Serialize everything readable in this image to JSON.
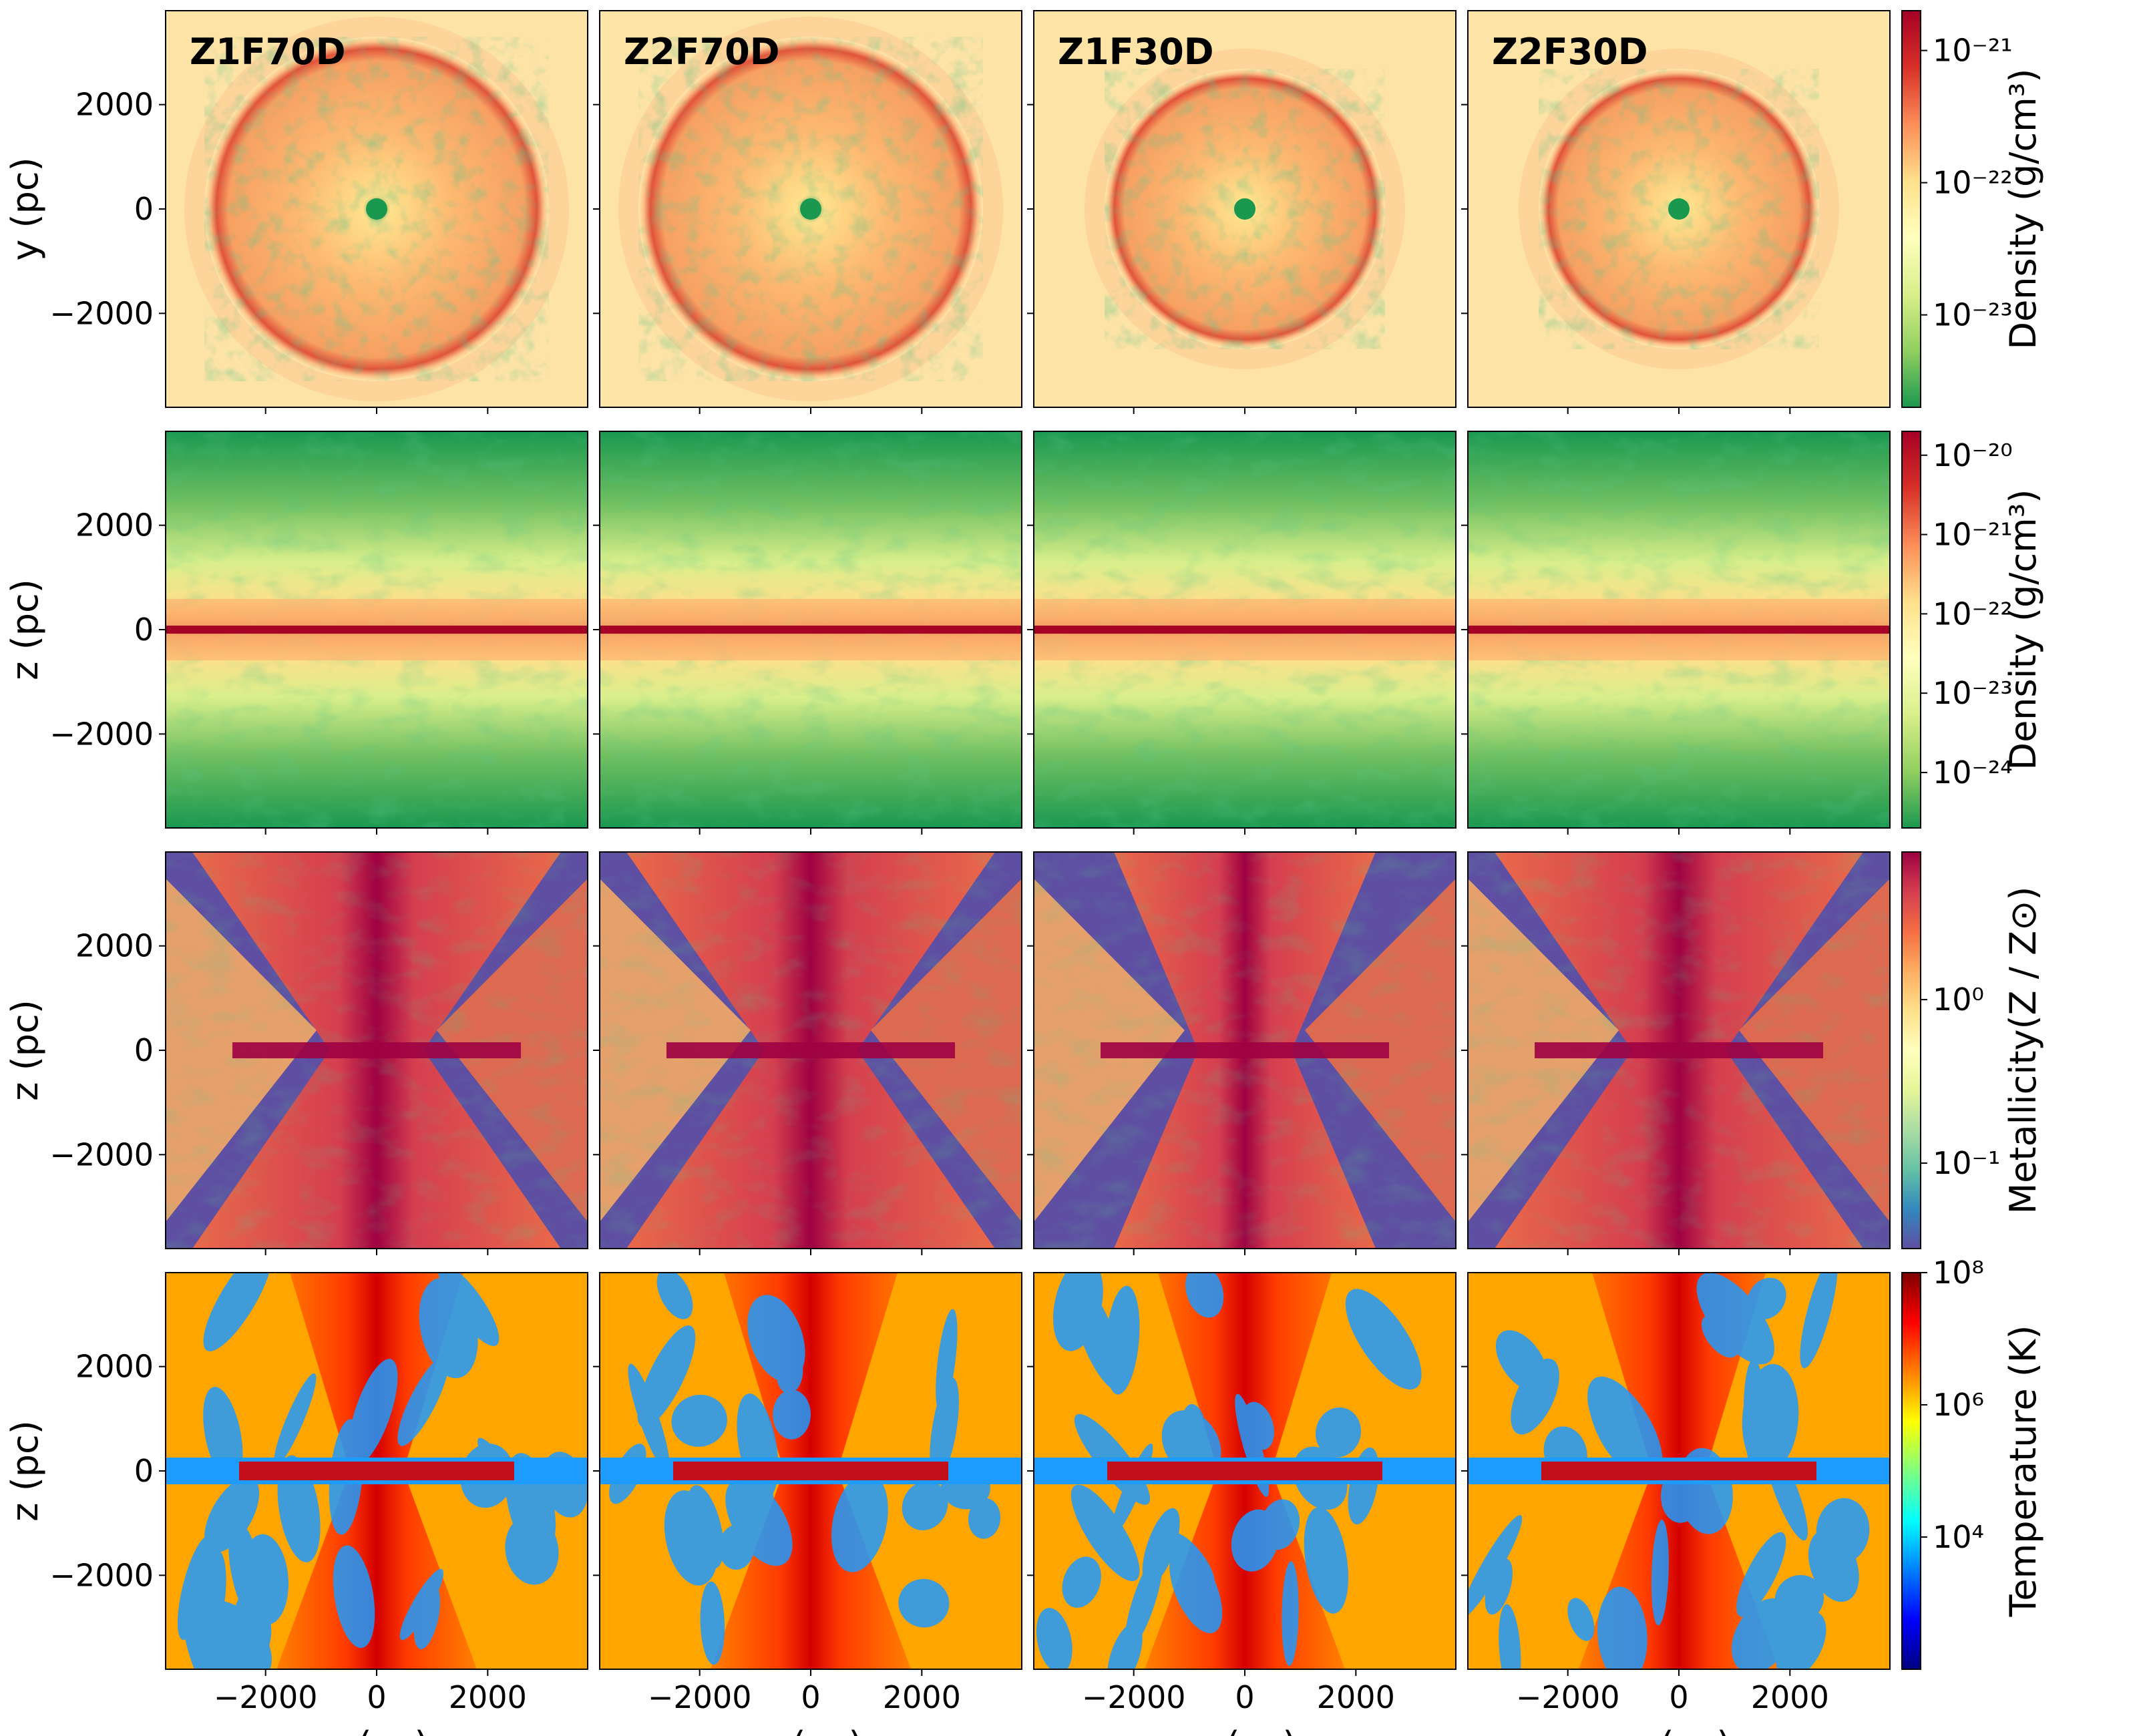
{
  "chart_data": {
    "type": "heatmap",
    "panel_titles": [
      "Z1F70D",
      "Z2F70D",
      "Z1F30D",
      "Z2F30D"
    ],
    "x_axis": {
      "label": "x (pc)",
      "range": [
        -3800,
        3800
      ],
      "ticks": [
        -2000,
        0,
        2000
      ],
      "tick_labels": [
        "−2000",
        "0",
        "2000"
      ]
    },
    "rows": [
      {
        "quantity": "density",
        "ylabel": "y (pc)",
        "y_range": [
          -3800,
          3800
        ],
        "y_ticks": [
          2000,
          0,
          -2000
        ],
        "y_tick_labels": [
          "2000",
          "0",
          "−2000"
        ],
        "colorbar": {
          "label": "Density (g/cm³)",
          "scale": "log",
          "range": [
            2e-24,
            2e-21
          ],
          "ticks": [
            1e-21,
            1e-22,
            1e-23
          ],
          "tick_labels": [
            "10⁻²¹",
            "10⁻²²",
            "10⁻²³"
          ],
          "colormap": [
            "#1a9850",
            "#91cf60",
            "#d9ef8b",
            "#ffffbf",
            "#fee08b",
            "#fc8d59",
            "#d73027",
            "#a50026"
          ]
        }
      },
      {
        "quantity": "density",
        "ylabel": "z (pc)",
        "y_range": [
          -3800,
          3800
        ],
        "y_ticks": [
          2000,
          0,
          -2000
        ],
        "y_tick_labels": [
          "2000",
          "0",
          "−2000"
        ],
        "colorbar": {
          "label": "Density (g/cm³)",
          "scale": "log",
          "range": [
            2e-25,
            2e-20
          ],
          "ticks": [
            1e-20,
            1e-21,
            1e-22,
            1e-23,
            1e-24
          ],
          "tick_labels": [
            "10⁻²⁰",
            "10⁻²¹",
            "10⁻²²",
            "10⁻²³",
            "10⁻²⁴"
          ],
          "colormap": [
            "#1a9850",
            "#91cf60",
            "#d9ef8b",
            "#ffffbf",
            "#fee08b",
            "#fc8d59",
            "#d73027",
            "#a50026"
          ]
        }
      },
      {
        "quantity": "metallicity",
        "ylabel": "z (pc)",
        "y_range": [
          -3800,
          3800
        ],
        "y_ticks": [
          2000,
          0,
          -2000
        ],
        "y_tick_labels": [
          "2000",
          "0",
          "−2000"
        ],
        "colorbar": {
          "label": "Metallicity(Z / Z⊙)",
          "scale": "log",
          "range": [
            0.03,
            8
          ],
          "ticks": [
            1,
            0.1
          ],
          "tick_labels": [
            "10⁰",
            "10⁻¹"
          ],
          "colormap": [
            "#5e4fa2",
            "#3288bd",
            "#66c2a5",
            "#abdda4",
            "#e6f598",
            "#ffffbf",
            "#fee08b",
            "#fdae61",
            "#f46d43",
            "#d53e4f",
            "#9e0142"
          ]
        }
      },
      {
        "quantity": "temperature",
        "ylabel": "z (pc)",
        "y_range": [
          -3800,
          3800
        ],
        "y_ticks": [
          2000,
          0,
          -2000
        ],
        "y_tick_labels": [
          "2000",
          "0",
          "−2000"
        ],
        "colorbar": {
          "label": "Temperature (K)",
          "scale": "log",
          "range": [
            100,
            100000000
          ],
          "ticks": [
            100000000,
            1000000,
            10000
          ],
          "tick_labels": [
            "10⁸",
            "10⁶",
            "10⁴"
          ],
          "colormap": [
            "#00007f",
            "#0000ff",
            "#007fff",
            "#00ffff",
            "#7fff7f",
            "#ffff00",
            "#ff7f00",
            "#ff0000",
            "#7f0000"
          ]
        }
      }
    ]
  }
}
